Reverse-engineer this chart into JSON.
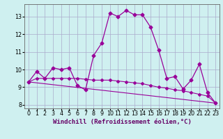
{
  "xlabel": "Windchill (Refroidissement éolien,°C)",
  "background_color": "#cff0f0",
  "grid_color": "#aaaacc",
  "line_color": "#990099",
  "xlim": [
    -0.5,
    23.5
  ],
  "ylim": [
    7.8,
    13.7
  ],
  "yticks": [
    8,
    9,
    10,
    11,
    12,
    13
  ],
  "xticks": [
    0,
    1,
    2,
    3,
    4,
    5,
    6,
    7,
    8,
    9,
    10,
    11,
    12,
    13,
    14,
    15,
    16,
    17,
    18,
    19,
    20,
    21,
    22,
    23
  ],
  "series1_x": [
    0,
    1,
    2,
    3,
    4,
    5,
    6,
    7,
    8,
    9,
    10,
    11,
    12,
    13,
    14,
    15,
    16,
    17,
    18,
    19,
    20,
    21,
    22,
    23
  ],
  "series1_y": [
    9.3,
    9.9,
    9.5,
    10.1,
    10.0,
    10.1,
    9.1,
    8.85,
    10.8,
    11.5,
    13.2,
    13.0,
    13.35,
    13.1,
    13.1,
    12.4,
    11.1,
    9.5,
    9.6,
    8.9,
    9.4,
    10.3,
    8.7,
    8.1
  ],
  "series2_x": [
    0,
    1,
    2,
    3,
    4,
    5,
    6,
    7,
    8,
    9,
    10,
    11,
    12,
    13,
    14,
    15,
    16,
    17,
    18,
    19,
    20,
    21,
    22,
    23
  ],
  "series2_y": [
    9.3,
    9.5,
    9.5,
    9.5,
    9.5,
    9.5,
    9.5,
    9.45,
    9.4,
    9.4,
    9.4,
    9.35,
    9.3,
    9.25,
    9.2,
    9.1,
    9.0,
    8.95,
    8.85,
    8.8,
    8.7,
    8.6,
    8.5,
    8.1
  ],
  "series3_x": [
    0,
    23
  ],
  "series3_y": [
    9.3,
    8.1
  ],
  "xlabel_fontsize": 6.5,
  "tick_fontsize": 5.8
}
